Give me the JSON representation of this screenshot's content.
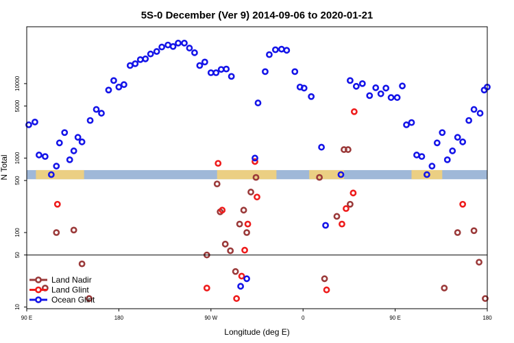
{
  "chart_data": {
    "type": "scatter",
    "title": "5S-0 December (Ver 9)   2014-09-06 to 2020-01-21",
    "xlabel": "Longitude (deg E)",
    "ylabel": "N Total",
    "yscale": "log",
    "xlim": [
      90,
      540
    ],
    "ylim": [
      9.5,
      58000
    ],
    "x_ticks": [
      {
        "value": 90,
        "label": "90 E"
      },
      {
        "value": 180,
        "label": "180"
      },
      {
        "value": 270,
        "label": "90 W"
      },
      {
        "value": 360,
        "label": "0"
      },
      {
        "value": 450,
        "label": "90 E"
      },
      {
        "value": 540,
        "label": "180"
      }
    ],
    "y_ticks": [
      {
        "value": 10,
        "label": "10"
      },
      {
        "value": 50,
        "label": "50"
      },
      {
        "value": 100,
        "label": "100"
      },
      {
        "value": 500,
        "label": "500"
      },
      {
        "value": 1000,
        "label": "1000"
      },
      {
        "value": 5000,
        "label": "5000"
      },
      {
        "value": 10000,
        "label": "10000"
      }
    ],
    "reference_line": 50,
    "map_strip": {
      "y_min": 520,
      "y_max": 690,
      "color": "#9fb8d8",
      "land_color": "#f3d27a",
      "land_ranges": [
        [
          99,
          146
        ],
        [
          276,
          334
        ],
        [
          366,
          400
        ],
        [
          466,
          496
        ]
      ]
    },
    "legend": [
      "Land Nadir",
      "Land Glint",
      "Ocean Glint"
    ],
    "series": [
      {
        "name": "Land Nadir",
        "color": "#9b3a3a",
        "points": [
          [
            108,
            18
          ],
          [
            119,
            100
          ],
          [
            136,
            108
          ],
          [
            144,
            38
          ],
          [
            151,
            13
          ],
          [
            266,
            50
          ],
          [
            276,
            450
          ],
          [
            279,
            190
          ],
          [
            284,
            70
          ],
          [
            289,
            57
          ],
          [
            294,
            30
          ],
          [
            298,
            130
          ],
          [
            302,
            200
          ],
          [
            305,
            100
          ],
          [
            309,
            350
          ],
          [
            314,
            550
          ],
          [
            376,
            550
          ],
          [
            381,
            24
          ],
          [
            393,
            165
          ],
          [
            400,
            1300
          ],
          [
            404,
            1300
          ],
          [
            406,
            240
          ],
          [
            498,
            18
          ],
          [
            511,
            100
          ],
          [
            527,
            106
          ],
          [
            532,
            40
          ],
          [
            538,
            13
          ]
        ]
      },
      {
        "name": "Land Glint",
        "color": "#ee1c1c",
        "points": [
          [
            120,
            240
          ],
          [
            277,
            850
          ],
          [
            281,
            200
          ],
          [
            266,
            18
          ],
          [
            300,
            26
          ],
          [
            295,
            13
          ],
          [
            303,
            58
          ],
          [
            306,
            130
          ],
          [
            313,
            900
          ],
          [
            315,
            300
          ],
          [
            410,
            4200
          ],
          [
            383,
            17
          ],
          [
            398,
            130
          ],
          [
            402,
            210
          ],
          [
            409,
            340
          ],
          [
            516,
            240
          ]
        ]
      },
      {
        "name": "Ocean Glint",
        "color": "#1414e8",
        "points": [
          [
            92,
            2800
          ],
          [
            98,
            3050
          ],
          [
            102,
            1100
          ],
          [
            108,
            1050
          ],
          [
            114,
            600
          ],
          [
            119,
            780
          ],
          [
            122,
            1600
          ],
          [
            127,
            2200
          ],
          [
            132,
            950
          ],
          [
            136,
            1250
          ],
          [
            140,
            1900
          ],
          [
            144,
            1650
          ],
          [
            152,
            3200
          ],
          [
            158,
            4500
          ],
          [
            163,
            4000
          ],
          [
            170,
            8200
          ],
          [
            175,
            11000
          ],
          [
            180,
            9000
          ],
          [
            185,
            9700
          ],
          [
            191,
            17500
          ],
          [
            196,
            18500
          ],
          [
            201,
            21000
          ],
          [
            206,
            21500
          ],
          [
            211,
            25000
          ],
          [
            217,
            27000
          ],
          [
            222,
            31000
          ],
          [
            228,
            33000
          ],
          [
            233,
            31500
          ],
          [
            238,
            35000
          ],
          [
            244,
            35000
          ],
          [
            249,
            30000
          ],
          [
            254,
            26000
          ],
          [
            259,
            17500
          ],
          [
            264,
            19500
          ],
          [
            270,
            14000
          ],
          [
            275,
            14000
          ],
          [
            280,
            15500
          ],
          [
            285,
            15700
          ],
          [
            290,
            12500
          ],
          [
            313,
            1000
          ],
          [
            316,
            5500
          ],
          [
            323,
            14500
          ],
          [
            327,
            24500
          ],
          [
            333,
            28500
          ],
          [
            339,
            29000
          ],
          [
            344,
            28000
          ],
          [
            352,
            14500
          ],
          [
            357,
            9000
          ],
          [
            361,
            8700
          ],
          [
            368,
            6700
          ],
          [
            378,
            1400
          ],
          [
            382,
            125
          ],
          [
            397,
            600
          ],
          [
            406,
            11000
          ],
          [
            412,
            9200
          ],
          [
            418,
            10000
          ],
          [
            425,
            6900
          ],
          [
            431,
            8800
          ],
          [
            436,
            7300
          ],
          [
            441,
            8700
          ],
          [
            446,
            6500
          ],
          [
            452,
            6500
          ],
          [
            457,
            9300
          ],
          [
            461,
            2800
          ],
          [
            466,
            3000
          ],
          [
            471,
            1100
          ],
          [
            476,
            1050
          ],
          [
            481,
            600
          ],
          [
            486,
            780
          ],
          [
            491,
            1600
          ],
          [
            496,
            2200
          ],
          [
            501,
            950
          ],
          [
            506,
            1250
          ],
          [
            511,
            1900
          ],
          [
            516,
            1650
          ],
          [
            522,
            3200
          ],
          [
            527,
            4500
          ],
          [
            533,
            4000
          ],
          [
            537,
            8200
          ],
          [
            540,
            9000
          ],
          [
            299,
            19
          ],
          [
            305,
            24
          ]
        ]
      }
    ]
  }
}
